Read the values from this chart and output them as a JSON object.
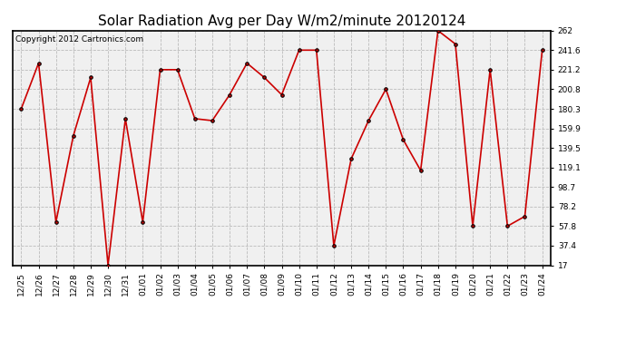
{
  "title": "Solar Radiation Avg per Day W/m2/minute 20120124",
  "copyright": "Copyright 2012 Cartronics.com",
  "dates": [
    "12/25",
    "12/26",
    "12/27",
    "12/28",
    "12/29",
    "12/30",
    "12/31",
    "01/01",
    "01/02",
    "01/03",
    "01/04",
    "01/05",
    "01/06",
    "01/07",
    "01/08",
    "01/09",
    "01/10",
    "01/11",
    "01/12",
    "01/13",
    "01/14",
    "01/15",
    "01/16",
    "01/17",
    "01/18",
    "01/19",
    "01/20",
    "01/21",
    "01/22",
    "01/23",
    "01/24"
  ],
  "values": [
    180.3,
    228.0,
    62.0,
    152.0,
    213.0,
    17.0,
    170.0,
    62.0,
    221.2,
    221.2,
    170.0,
    168.0,
    195.0,
    228.0,
    213.0,
    195.0,
    241.6,
    241.6,
    37.4,
    128.0,
    168.0,
    200.8,
    148.0,
    116.0,
    262.0,
    248.0,
    57.8,
    221.2,
    57.8,
    68.0,
    241.6
  ],
  "ylim": [
    17.0,
    262.0
  ],
  "yticks": [
    17.0,
    37.4,
    57.8,
    78.2,
    98.7,
    119.1,
    139.5,
    159.9,
    180.3,
    200.8,
    221.2,
    241.6,
    262.0
  ],
  "line_color": "#cc0000",
  "marker": "o",
  "marker_color": "#000000",
  "marker_size": 2.5,
  "bg_color": "#f0f0f0",
  "fig_bg_color": "#ffffff",
  "grid_color": "#bbbbbb",
  "title_fontsize": 11,
  "tick_fontsize": 6.5,
  "copyright_fontsize": 6.5
}
